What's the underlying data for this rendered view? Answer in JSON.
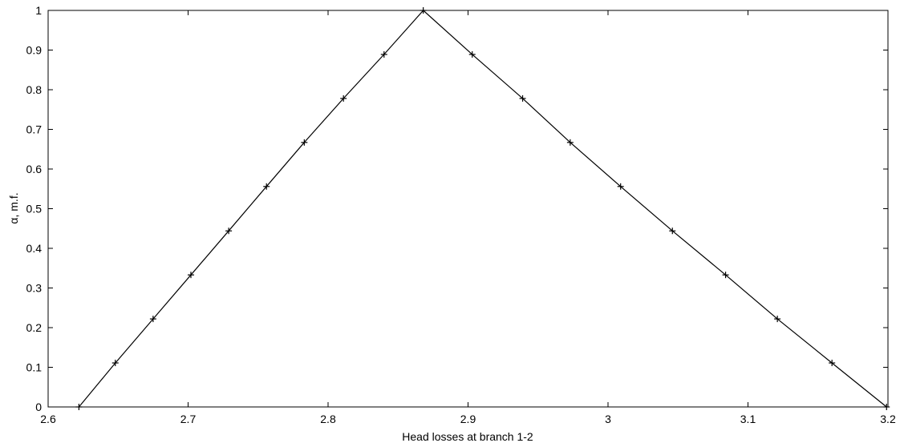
{
  "chart_data": {
    "type": "line",
    "title": "",
    "xlabel": "Head losses at branch 1-2",
    "ylabel": "α, m.f.",
    "xlim": [
      2.6,
      3.2
    ],
    "ylim": [
      0,
      1
    ],
    "x_ticks": [
      "2.6",
      "2.7",
      "2.8",
      "2.9",
      "3",
      "3.1",
      "3.2"
    ],
    "y_ticks": [
      "0",
      "0.1",
      "0.2",
      "0.3",
      "0.4",
      "0.5",
      "0.6",
      "0.7",
      "0.8",
      "0.9",
      "1"
    ],
    "grid": false,
    "marker": "+",
    "line_color": "#000000",
    "series": [
      {
        "x": [
          2.622,
          2.648,
          2.675,
          2.702,
          2.729,
          2.756,
          2.783,
          2.811,
          2.84,
          2.868,
          2.903,
          2.939,
          2.973,
          3.009,
          3.046,
          3.084,
          3.121,
          3.16,
          3.199
        ],
        "y": [
          0,
          0.111,
          0.222,
          0.333,
          0.444,
          0.556,
          0.667,
          0.778,
          0.889,
          1,
          0.889,
          0.778,
          0.667,
          0.556,
          0.444,
          0.333,
          0.222,
          0.111,
          0
        ]
      }
    ]
  }
}
